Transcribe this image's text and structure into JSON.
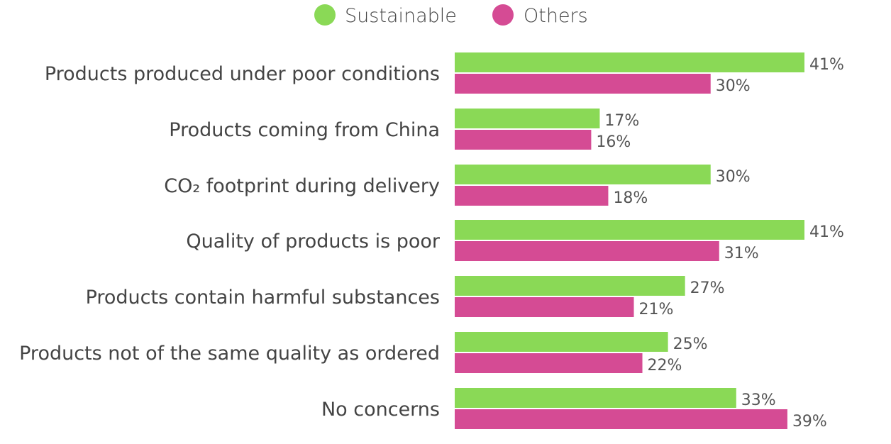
{
  "chart_data": {
    "type": "bar",
    "orientation": "horizontal",
    "categories": [
      "Products produced under poor conditions",
      "Products coming from China",
      "CO₂ footprint during delivery",
      "Quality of products is poor",
      "Products contain harmful substances",
      "Products not of the same quality as ordered",
      "No concerns"
    ],
    "series": [
      {
        "name": "Sustainable",
        "color": "#8ad956",
        "values": [
          41,
          17,
          30,
          41,
          27,
          25,
          33
        ]
      },
      {
        "name": "Others",
        "color": "#d54b94",
        "values": [
          30,
          16,
          18,
          31,
          21,
          22,
          39
        ]
      }
    ],
    "value_suffix": "%",
    "legend_position": "top-center",
    "grid": false,
    "xlim": [
      0,
      41
    ]
  }
}
